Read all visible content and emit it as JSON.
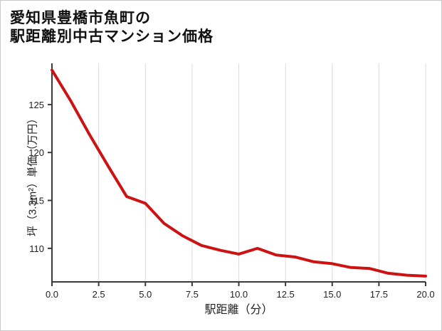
{
  "chart_data": {
    "type": "line",
    "title_line1": "愛知県豊橋市魚町の",
    "title_line2": "駅距離別中古マンション価格",
    "title": "愛知県豊橋市魚町の\n駅距離別中古マンション価格",
    "xlabel": "駅距離（分）",
    "ylabel": "坪（3.3m²）単価（万円）",
    "x": [
      0,
      1,
      2,
      3,
      4,
      5,
      6,
      7,
      8,
      9,
      10,
      11,
      12,
      13,
      14,
      15,
      16,
      17,
      18,
      19,
      20
    ],
    "y": [
      128.6,
      125.4,
      121.9,
      118.6,
      115.4,
      114.7,
      112.6,
      111.3,
      110.3,
      109.8,
      109.4,
      110.0,
      109.3,
      109.1,
      108.6,
      108.4,
      108.0,
      107.9,
      107.4,
      107.2,
      107.1
    ],
    "x_tick_values": [
      0,
      2.5,
      5,
      7.5,
      10,
      12.5,
      15,
      17.5,
      20
    ],
    "x_tick_labels": [
      "0.0",
      "2.5",
      "5.0",
      "7.5",
      "10.0",
      "12.5",
      "15.0",
      "17.5",
      "20.0"
    ],
    "y_tick_values": [
      110,
      115,
      120,
      125
    ],
    "y_tick_labels": [
      "110",
      "115",
      "120",
      "125"
    ],
    "xlim": [
      0,
      20
    ],
    "ylim": [
      106.5,
      129.3
    ],
    "grid": "vertical-only",
    "legend": "none",
    "line_color": "#cc1212",
    "grid_color": "#dcdcdc",
    "axis_color": "#3a3a3a",
    "tick_label_color": "#222222"
  }
}
